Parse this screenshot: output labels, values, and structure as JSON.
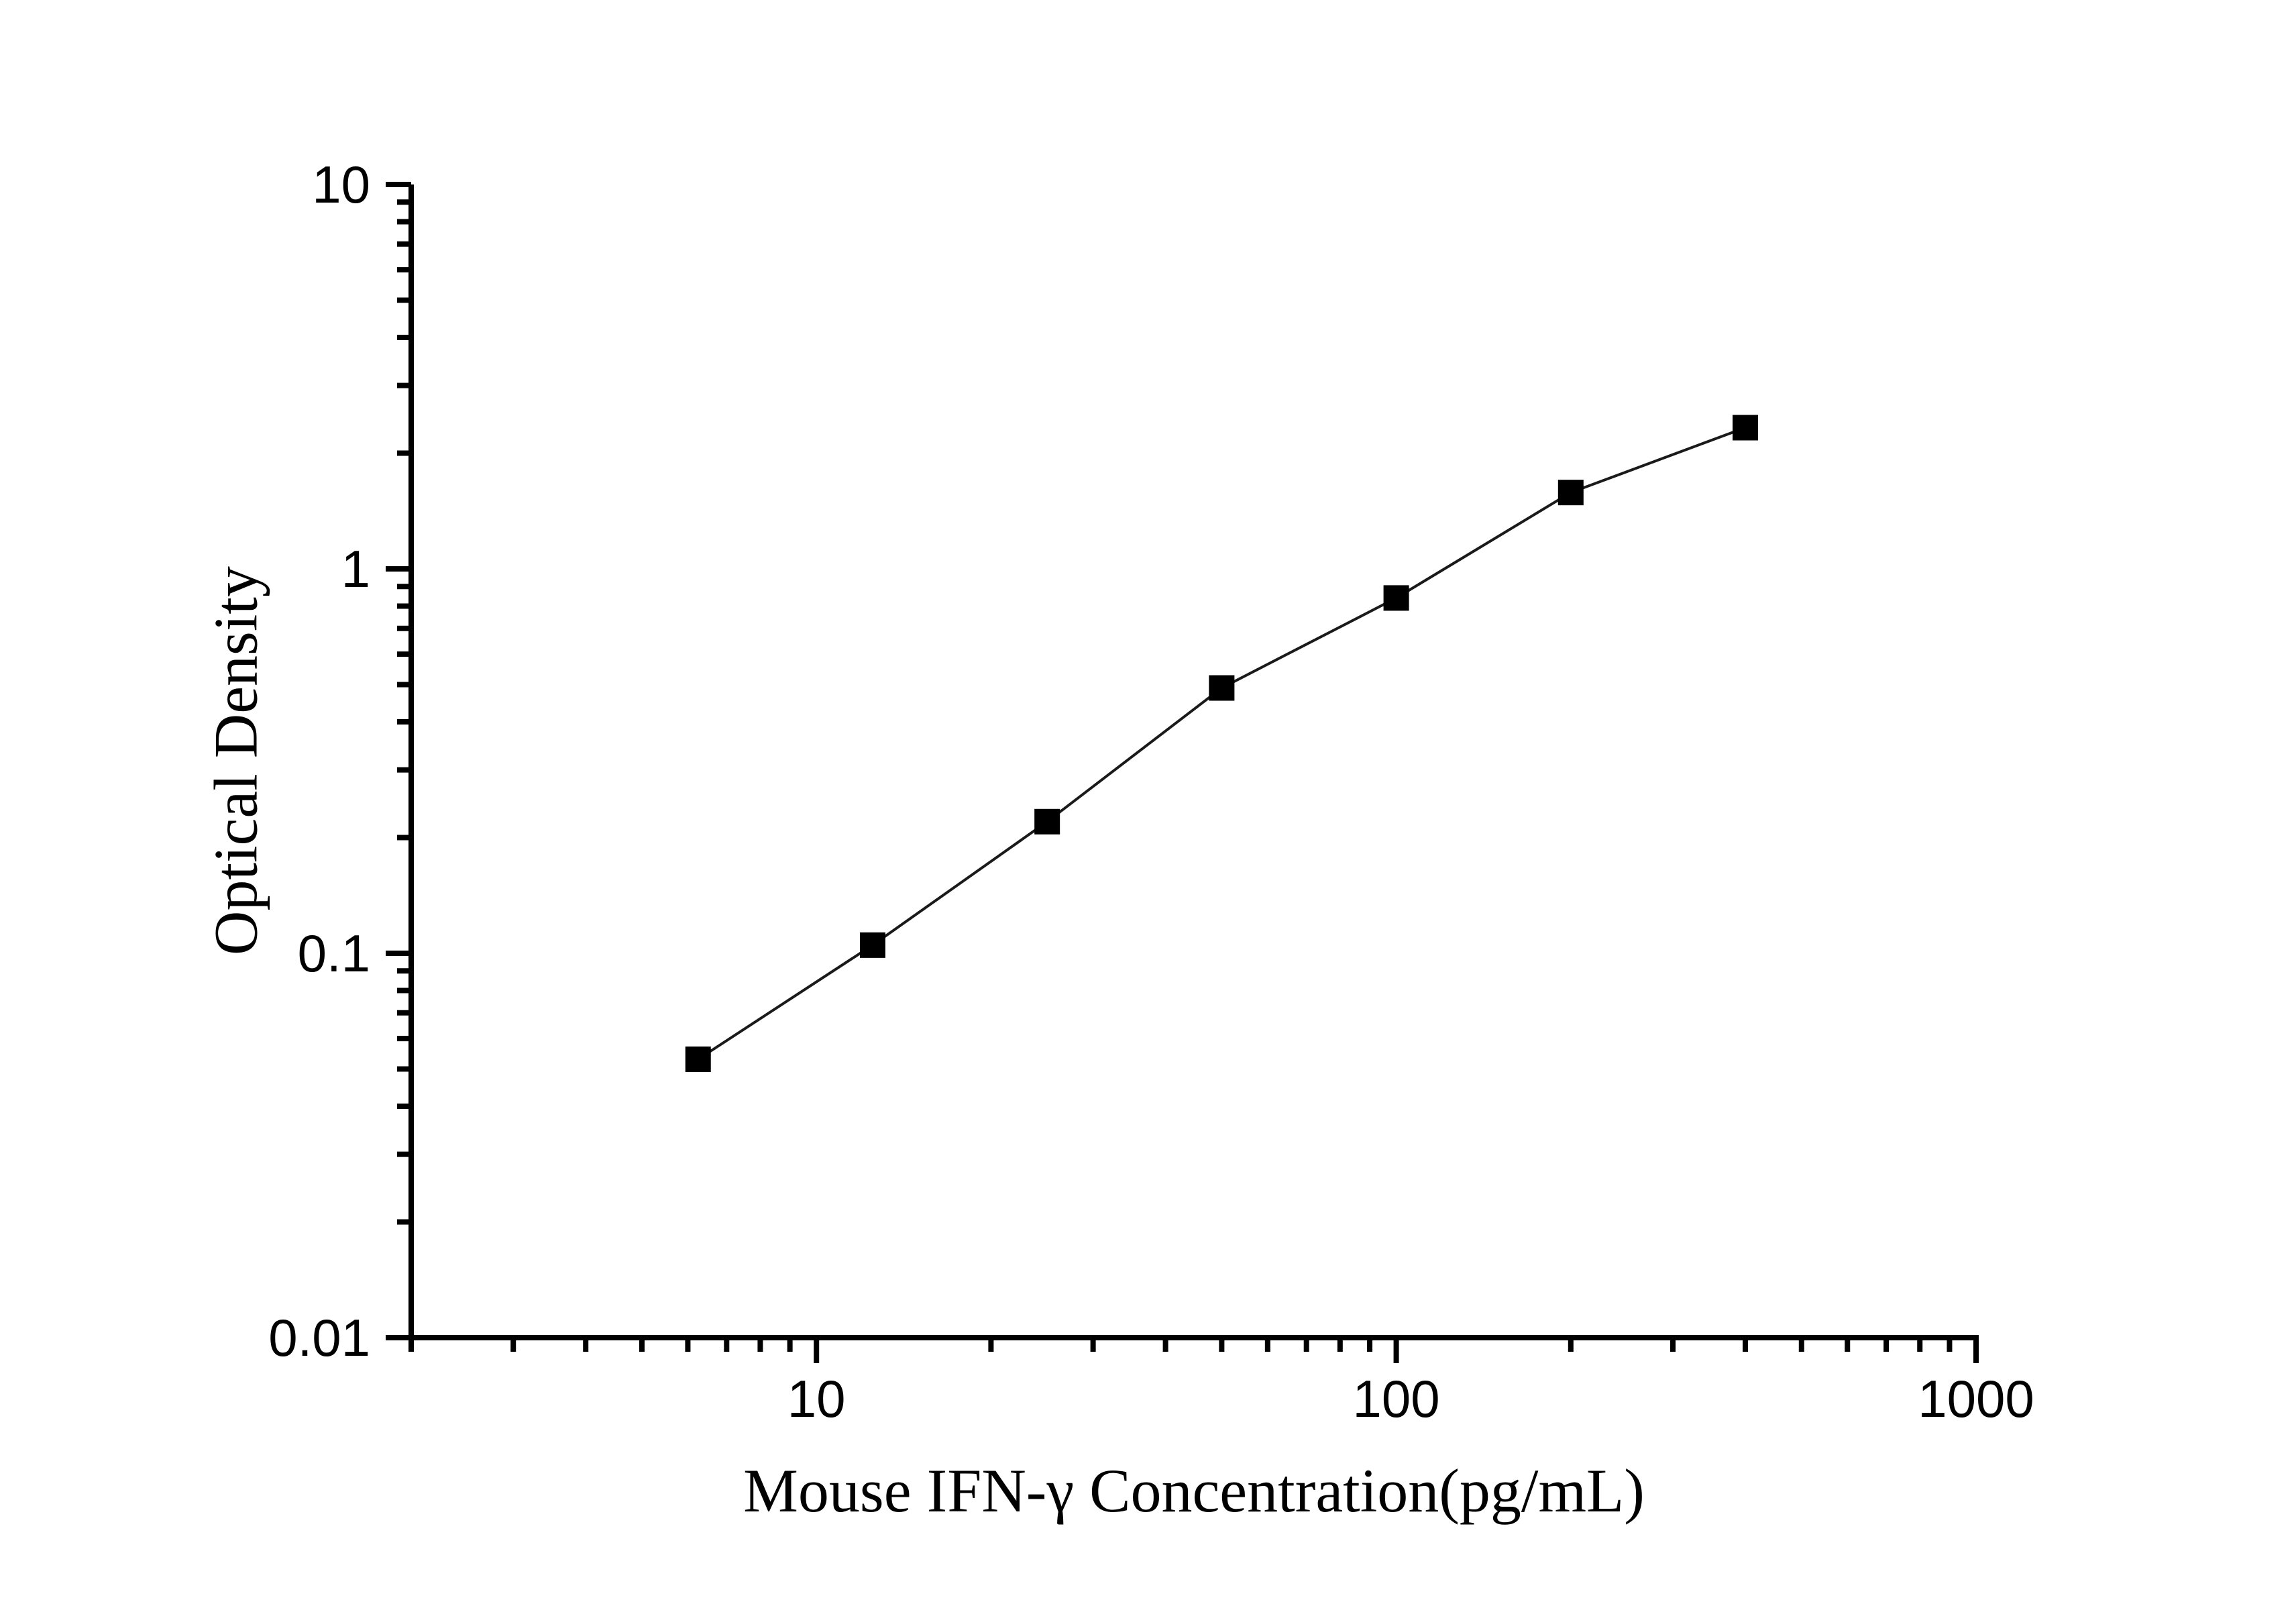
{
  "chart_data": {
    "type": "scatter",
    "subtype": "line-with-square-markers",
    "title": "",
    "xlabel": "Mouse IFN-γ Concentration(pg/mL)",
    "ylabel": "Optical Density",
    "x_scale": "log",
    "y_scale": "log",
    "xlim": [
      2,
      1000
    ],
    "ylim": [
      0.01,
      10
    ],
    "grid": false,
    "legend": "none",
    "x_major_ticks": [
      {
        "value": 10,
        "label": "10"
      },
      {
        "value": 100,
        "label": "100"
      },
      {
        "value": 1000,
        "label": "1000"
      }
    ],
    "y_major_ticks": [
      {
        "value": 0.01,
        "label": "0.01"
      },
      {
        "value": 0.1,
        "label": "0.1"
      },
      {
        "value": 1,
        "label": "1"
      },
      {
        "value": 10,
        "label": "10"
      }
    ],
    "x_minor_ticks": [
      2,
      3,
      4,
      5,
      6,
      7,
      8,
      9,
      20,
      30,
      40,
      50,
      60,
      70,
      80,
      90,
      200,
      300,
      400,
      500,
      600,
      700,
      800,
      900
    ],
    "y_minor_ticks": [
      0.02,
      0.03,
      0.04,
      0.05,
      0.06,
      0.07,
      0.08,
      0.09,
      0.2,
      0.3,
      0.4,
      0.5,
      0.6,
      0.7,
      0.8,
      0.9,
      2,
      3,
      4,
      5,
      6,
      7,
      8,
      9
    ],
    "series": [
      {
        "name": "standard-curve",
        "marker": "filled-square",
        "x": [
          6.25,
          12.5,
          25,
          50,
          100,
          200,
          400
        ],
        "y": [
          0.053,
          0.105,
          0.22,
          0.49,
          0.84,
          1.58,
          2.33
        ]
      }
    ],
    "colors": {
      "background": "#ffffff",
      "axis": "#000000",
      "marker": "#000000",
      "line": "#1a1a1a",
      "text": "#000000"
    }
  }
}
